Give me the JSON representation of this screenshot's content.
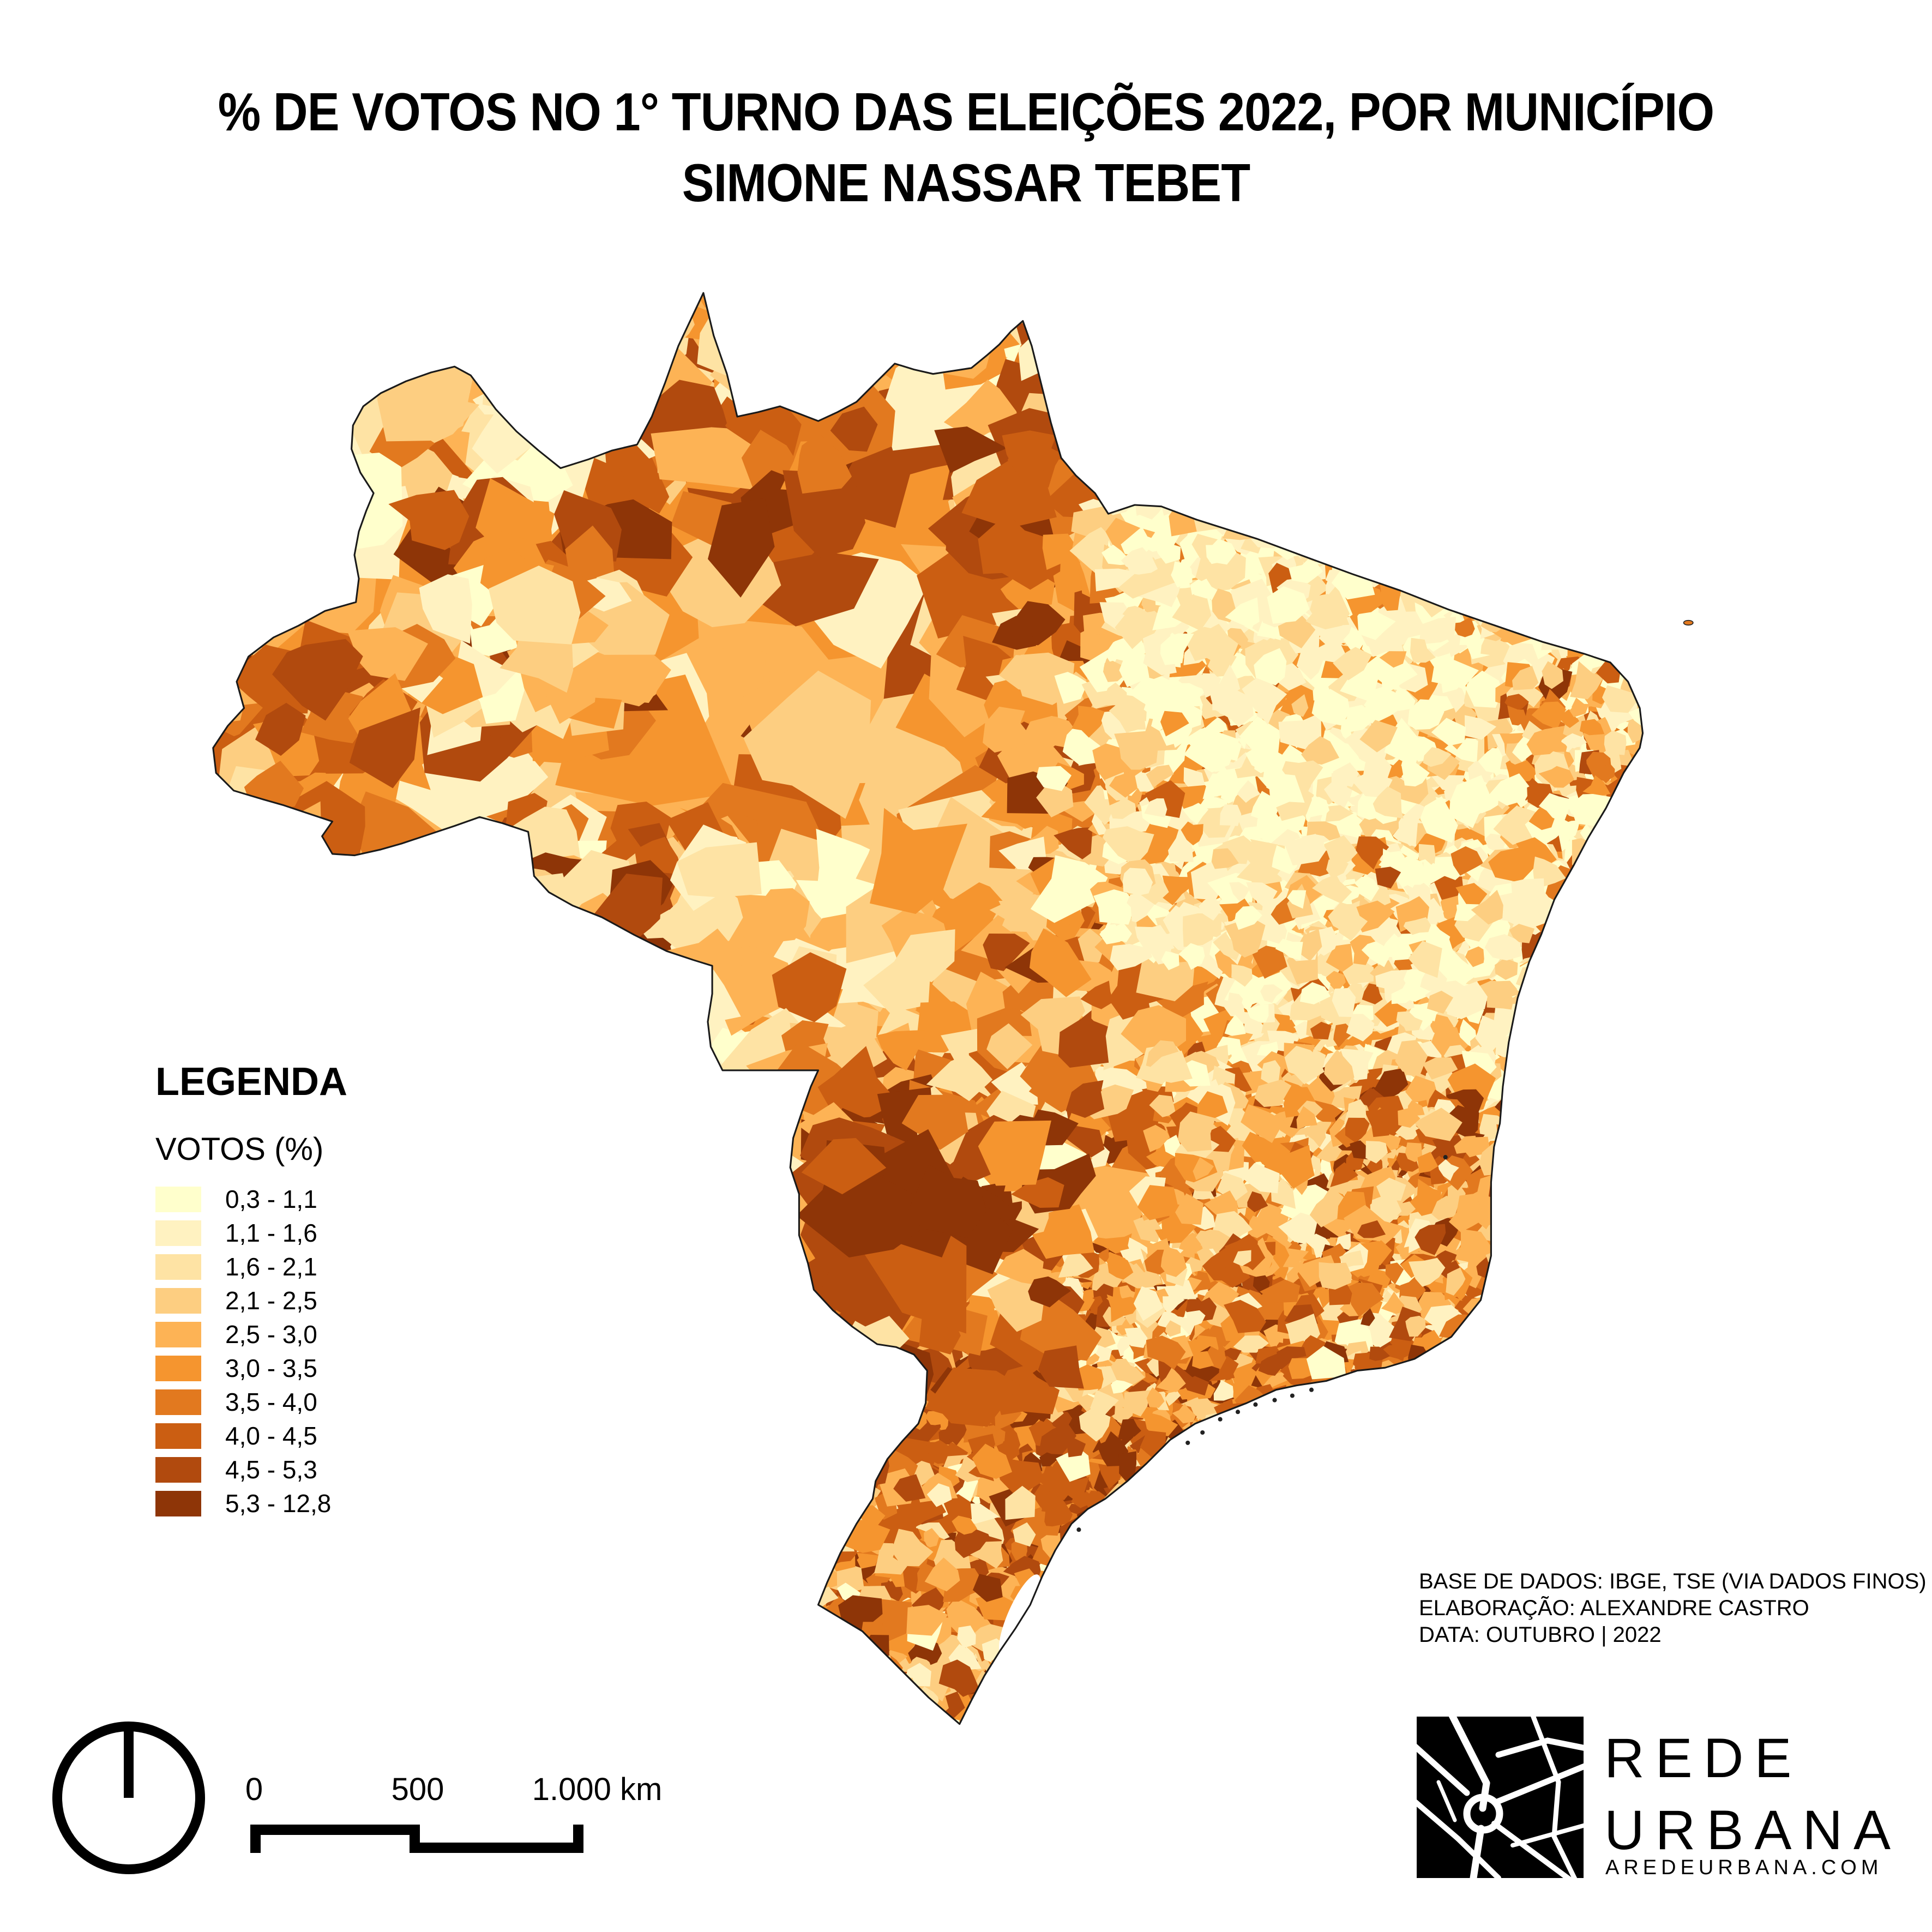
{
  "title": {
    "line1": "% DE VOTOS NO 1° TURNO DAS ELEIÇÕES 2022, POR MUNICÍPIO",
    "line2": "SIMONE NASSAR TEBET"
  },
  "legend": {
    "heading": "LEGENDA",
    "subheading": "VOTOS (%)",
    "classes": [
      {
        "range": "0,3 - 1,1",
        "color": "#FFFFCC"
      },
      {
        "range": "1,1 - 1,6",
        "color": "#FFF2C1"
      },
      {
        "range": "1,6 - 2,1",
        "color": "#FEE3A4"
      },
      {
        "range": "2,1 - 2,5",
        "color": "#FDCE81"
      },
      {
        "range": "2,5 - 3,0",
        "color": "#FDB355"
      },
      {
        "range": "3,0 - 3,5",
        "color": "#F5952F"
      },
      {
        "range": "3,5 - 4,0",
        "color": "#E2791F"
      },
      {
        "range": "4,0 - 4,5",
        "color": "#CB5E12"
      },
      {
        "range": "4,5 - 5,3",
        "color": "#B14A0E"
      },
      {
        "range": "5,3 - 12,8",
        "color": "#8E3507"
      }
    ]
  },
  "scalebar": {
    "labels": [
      "0",
      "500",
      "1.000 km"
    ]
  },
  "credits": {
    "lines": [
      "BASE DE DADOS: IBGE, TSE (VIA DADOS FINOS)",
      "ELABORAÇÃO: ALEXANDRE CASTRO",
      "DATA: OUTUBRO | 2022"
    ]
  },
  "logo": {
    "line1": "REDE",
    "line2": "URBANA",
    "website": "AREDEURBANA.COM"
  },
  "map": {
    "outline_color": "#1a1a1a",
    "water_color": "#ffffff"
  },
  "chart_data": {
    "type": "choropleth_map",
    "title": "% DE VOTOS NO 1° TURNO DAS ELEIÇÕES 2022, POR MUNICÍPIO — SIMONE NASSAR TEBET",
    "geography": "Brasil, por município",
    "variable": "VOTOS (%)",
    "class_breaks": [
      0.3,
      1.1,
      1.6,
      2.1,
      2.5,
      3.0,
      3.5,
      4.0,
      4.5,
      5.3,
      12.8
    ],
    "class_colors": [
      "#FFFFCC",
      "#FFF2C1",
      "#FEE3A4",
      "#FDCE81",
      "#FDB355",
      "#F5952F",
      "#E2791F",
      "#CB5E12",
      "#B14A0E",
      "#8E3507"
    ],
    "legend_position": "left-middle",
    "regional_pattern_read_from_pixels": {
      "norte_amazonia": "predominantemente 2,5 - 4,0, polígonos grandes, manchas 4,5 - 12,8 no Alto Rio Negro e oeste",
      "nordeste": "predominantemente 0,3 - 1,6 (tons creme), salpicos laranja no litoral leste",
      "centro_oeste": "misto 2,1 - 4,0; Mato Grosso do Sul com grandes municípios em 4,5 - 12,8",
      "sudeste": "misto 2,5 - 5,3; faixa escura em São Paulo e sul de Minas",
      "sul": "predominantemente 3,5 - 12,8 (laranja escuro a marrom)"
    }
  }
}
